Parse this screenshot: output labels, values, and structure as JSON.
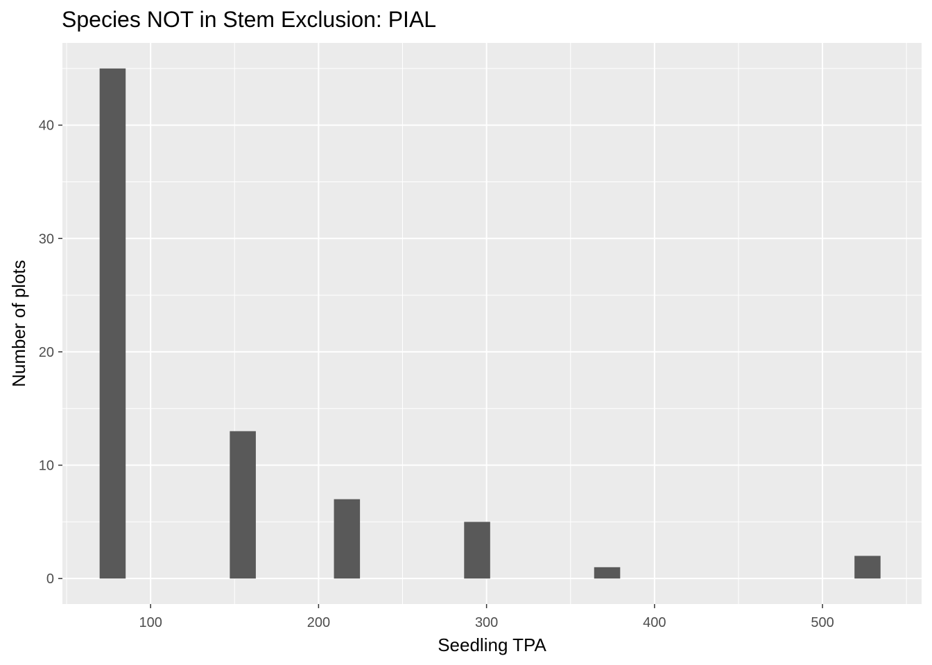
{
  "chart_data": {
    "type": "bar",
    "title": "Species NOT in Stem Exclusion: PIAL",
    "xlabel": "Seedling TPA",
    "ylabel": "Number of plots",
    "xlim": [
      47.5,
      559
    ],
    "ylim": [
      -2.25,
      47.25
    ],
    "x_ticks": [
      100,
      200,
      300,
      400,
      500
    ],
    "y_ticks": [
      0,
      10,
      20,
      30,
      40
    ],
    "bin_width": 15.5,
    "bins": [
      {
        "center": 77.4,
        "count": 45
      },
      {
        "center": 154.9,
        "count": 13
      },
      {
        "center": 216.9,
        "count": 7
      },
      {
        "center": 294.4,
        "count": 5
      },
      {
        "center": 371.8,
        "count": 1
      },
      {
        "center": 526.8,
        "count": 2
      }
    ],
    "grid": true,
    "colors": {
      "bar": "#595959",
      "panel": "#ebebeb",
      "grid": "#ffffff"
    }
  }
}
